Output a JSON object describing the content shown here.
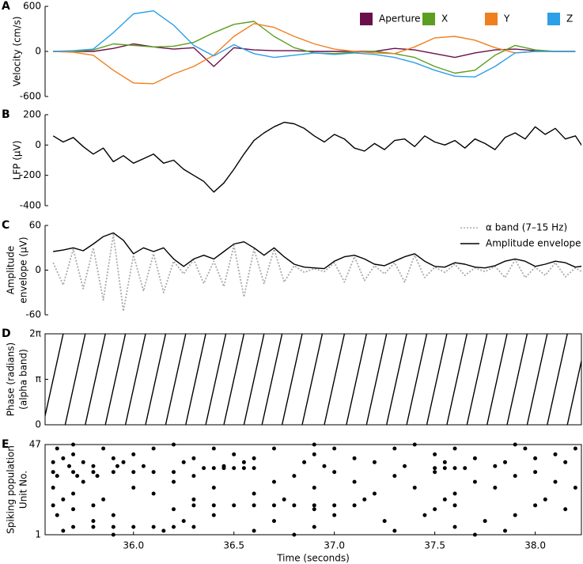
{
  "chart_data": [
    {
      "type": "line",
      "panel_label": "A",
      "ylabel": [
        "Velocity (cm/s)"
      ],
      "xlim": [
        35.56,
        38.23
      ],
      "ylim": [
        -600,
        600
      ],
      "yticks": [
        -600,
        0,
        600
      ],
      "legend": "upper right",
      "legend_marker": "square",
      "x": [
        35.6,
        35.7,
        35.8,
        35.9,
        36.0,
        36.1,
        36.2,
        36.3,
        36.4,
        36.5,
        36.6,
        36.7,
        36.8,
        36.9,
        37.0,
        37.1,
        37.2,
        37.3,
        37.4,
        37.5,
        37.6,
        37.7,
        37.8,
        37.9,
        38.0,
        38.1,
        38.2
      ],
      "series": [
        {
          "name": "Aperture",
          "color": "#6b0f4a",
          "values": [
            0,
            0,
            0,
            40,
            100,
            60,
            30,
            50,
            -200,
            50,
            20,
            10,
            10,
            0,
            0,
            0,
            0,
            40,
            20,
            -30,
            -80,
            -20,
            20,
            30,
            10,
            0,
            0
          ]
        },
        {
          "name": "X",
          "color": "#5c9e1f",
          "values": [
            0,
            0,
            20,
            100,
            80,
            60,
            70,
            120,
            250,
            360,
            400,
            200,
            50,
            -20,
            -30,
            -10,
            0,
            -30,
            -80,
            -200,
            -290,
            -250,
            -50,
            80,
            20,
            0,
            0
          ]
        },
        {
          "name": "Y",
          "color": "#f07f20",
          "values": [
            0,
            -10,
            -50,
            -250,
            -420,
            -430,
            -300,
            -200,
            -50,
            200,
            370,
            320,
            200,
            100,
            30,
            0,
            -20,
            -30,
            60,
            180,
            200,
            150,
            50,
            -20,
            0,
            0,
            0
          ]
        },
        {
          "name": "Z",
          "color": "#2b9fe8",
          "values": [
            0,
            10,
            30,
            250,
            500,
            540,
            350,
            80,
            -60,
            90,
            -30,
            -80,
            -50,
            -20,
            -40,
            -20,
            -40,
            -80,
            -150,
            -250,
            -330,
            -340,
            -200,
            -20,
            0,
            0,
            0
          ]
        }
      ]
    },
    {
      "type": "line",
      "panel_label": "B",
      "ylabel": [
        "LFP (μV)"
      ],
      "xlim": [
        35.56,
        38.23
      ],
      "ylim": [
        -400,
        200
      ],
      "yticks": [
        -400,
        -200,
        0,
        200
      ],
      "x": [
        35.6,
        35.65,
        35.7,
        35.75,
        35.8,
        35.85,
        35.9,
        35.95,
        36.0,
        36.05,
        36.1,
        36.15,
        36.2,
        36.25,
        36.3,
        36.35,
        36.4,
        36.45,
        36.5,
        36.55,
        36.6,
        36.65,
        36.7,
        36.75,
        36.8,
        36.85,
        36.9,
        36.95,
        37.0,
        37.05,
        37.1,
        37.15,
        37.2,
        37.25,
        37.3,
        37.35,
        37.4,
        37.45,
        37.5,
        37.55,
        37.6,
        37.65,
        37.7,
        37.75,
        37.8,
        37.85,
        37.9,
        37.95,
        38.0,
        38.05,
        38.1,
        38.15,
        38.2,
        38.25
      ],
      "series": [
        {
          "color": "#000000",
          "values": [
            60,
            20,
            50,
            -10,
            -60,
            -20,
            -110,
            -70,
            -120,
            -90,
            -60,
            -120,
            -100,
            -160,
            -200,
            -240,
            -310,
            -250,
            -160,
            -60,
            30,
            80,
            120,
            150,
            140,
            110,
            60,
            20,
            70,
            40,
            -20,
            -40,
            10,
            -30,
            30,
            40,
            -10,
            60,
            20,
            0,
            30,
            -20,
            40,
            10,
            -30,
            50,
            80,
            40,
            120,
            70,
            110,
            40,
            60,
            -40
          ]
        }
      ]
    },
    {
      "type": "line",
      "panel_label": "C",
      "ylabel": [
        "Amplitude",
        "envelope (μV)"
      ],
      "xlim": [
        35.56,
        38.23
      ],
      "ylim": [
        -60,
        60
      ],
      "yticks": [
        -60,
        0,
        60
      ],
      "legend": "upper right",
      "legend_marker": "line",
      "x": [
        35.6,
        35.65,
        35.7,
        35.75,
        35.8,
        35.85,
        35.9,
        35.95,
        36.0,
        36.05,
        36.1,
        36.15,
        36.2,
        36.25,
        36.3,
        36.35,
        36.4,
        36.45,
        36.5,
        36.55,
        36.6,
        36.65,
        36.7,
        36.75,
        36.8,
        36.85,
        36.9,
        36.95,
        37.0,
        37.05,
        37.1,
        37.15,
        37.2,
        37.25,
        37.3,
        37.35,
        37.4,
        37.45,
        37.5,
        37.55,
        37.6,
        37.65,
        37.7,
        37.75,
        37.8,
        37.85,
        37.9,
        37.95,
        38.0,
        38.05,
        38.1,
        38.15,
        38.2,
        38.25
      ],
      "series": [
        {
          "name": "α band (7–15 Hz)",
          "color": "#aaaaaa",
          "linestyle": "dotted",
          "values": [
            10,
            -20,
            28,
            -25,
            30,
            -40,
            48,
            -55,
            20,
            -28,
            22,
            -30,
            12,
            -5,
            14,
            -18,
            12,
            -22,
            33,
            -36,
            28,
            -18,
            28,
            -16,
            6,
            -3,
            2,
            -2,
            10,
            -16,
            18,
            -14,
            6,
            -5,
            10,
            -16,
            20,
            -10,
            4,
            -3,
            8,
            -7,
            3,
            -2,
            5,
            -10,
            14,
            -10,
            4,
            -7,
            10,
            -9,
            3,
            -5
          ]
        },
        {
          "name": "Amplitude envelope",
          "color": "#000000",
          "linestyle": "solid",
          "values": [
            25,
            27,
            30,
            26,
            35,
            45,
            50,
            40,
            22,
            30,
            25,
            30,
            15,
            5,
            15,
            20,
            15,
            25,
            35,
            38,
            30,
            20,
            30,
            18,
            8,
            4,
            3,
            2,
            12,
            18,
            20,
            15,
            8,
            6,
            12,
            18,
            22,
            12,
            5,
            4,
            10,
            8,
            4,
            3,
            6,
            12,
            15,
            12,
            5,
            8,
            12,
            10,
            4,
            6
          ]
        }
      ]
    },
    {
      "type": "line",
      "panel_label": "D",
      "ylabel": [
        "Phase (radians)",
        "(alpha band)"
      ],
      "frame": true,
      "xlim": [
        35.56,
        38.23
      ],
      "ylim": [
        0,
        6.2832
      ],
      "yticks": [
        0,
        {
          "value": 3.1416,
          "label": "π"
        },
        {
          "value": 6.2832,
          "label": "2π"
        }
      ],
      "x": [
        35.55,
        35.65,
        null,
        35.66,
        35.76,
        null,
        35.76,
        35.86,
        null,
        35.86,
        35.96,
        null,
        35.96,
        36.06,
        null,
        36.06,
        36.16,
        null,
        36.16,
        36.26,
        null,
        36.26,
        36.36,
        null,
        36.36,
        36.46,
        null,
        36.45,
        36.55,
        null,
        36.55,
        36.65,
        null,
        36.64,
        36.74,
        null,
        36.74,
        36.84,
        null,
        36.84,
        36.94,
        null,
        36.95,
        37.05,
        null,
        37.06,
        37.16,
        null,
        37.16,
        37.26,
        null,
        37.26,
        37.36,
        null,
        37.36,
        37.46,
        null,
        37.46,
        37.56,
        null,
        37.56,
        37.66,
        null,
        37.66,
        37.76,
        null,
        37.76,
        37.86,
        null,
        37.86,
        37.96,
        null,
        37.96,
        38.06,
        null,
        38.06,
        38.16,
        null,
        38.16,
        38.26
      ],
      "series": [
        {
          "color": "#000000",
          "values": [
            0,
            6.2832,
            null,
            0,
            6.2832,
            null,
            0,
            6.2832,
            null,
            0,
            6.2832,
            null,
            0,
            6.2832,
            null,
            0,
            6.2832,
            null,
            0,
            6.2832,
            null,
            0,
            6.2832,
            null,
            0,
            6.2832,
            null,
            0,
            6.2832,
            null,
            0,
            6.2832,
            null,
            0,
            6.2832,
            null,
            0,
            6.2832,
            null,
            0,
            6.2832,
            null,
            0,
            6.2832,
            null,
            0,
            6.2832,
            null,
            0,
            6.2832,
            null,
            0,
            6.2832,
            null,
            0,
            6.2832,
            null,
            0,
            6.2832,
            null,
            0,
            6.2832,
            null,
            0,
            6.2832,
            null,
            0,
            6.2832,
            null,
            0,
            6.2832,
            null,
            0,
            6.2832,
            null,
            0,
            6.2832,
            null,
            0,
            6.2832
          ]
        }
      ]
    },
    {
      "type": "scatter",
      "panel_label": "E",
      "ylabel": [
        "Spiking population",
        "Unit No."
      ],
      "frame": true,
      "xlabel": "Time (seconds)",
      "color": "#000000",
      "xlim": [
        35.56,
        38.23
      ],
      "ylim": [
        1,
        47
      ],
      "yticks": [
        1,
        47
      ],
      "xticks": [
        {
          "value": 36,
          "label": "36.0"
        },
        36.5,
        {
          "value": 37,
          "label": "37.0"
        },
        37.5,
        {
          "value": 38,
          "label": "38.0"
        }
      ],
      "x": [
        35.7,
        36.2,
        36.9,
        37.4,
        37.9,
        35.62,
        35.85,
        36.1,
        36.4,
        36.7,
        37.0,
        37.3,
        37.6,
        37.95,
        38.2,
        35.7,
        36.0,
        36.5,
        36.9,
        37.5,
        38.1,
        35.65,
        35.9,
        36.3,
        36.6,
        37.1,
        37.7,
        38.0,
        35.6,
        35.75,
        35.95,
        36.25,
        36.55,
        36.85,
        37.2,
        37.55,
        37.85,
        38.15,
        35.68,
        35.8,
        35.92,
        36.05,
        36.45,
        36.95,
        37.35,
        37.8,
        36.35,
        36.4,
        36.45,
        36.5,
        36.55,
        36.6,
        37.5,
        37.55,
        37.6,
        37.65,
        35.6,
        35.7,
        35.8,
        35.9,
        36.0,
        36.1,
        36.2,
        37.0,
        37.5,
        38.0,
        35.62,
        35.72,
        35.82,
        36.3,
        36.8,
        37.3,
        37.9,
        35.75,
        36.2,
        36.7,
        37.1,
        37.7,
        38.1,
        35.6,
        36.0,
        36.4,
        36.9,
        37.4,
        37.8,
        38.2,
        35.7,
        36.1,
        36.6,
        37.2,
        37.6,
        35.65,
        35.85,
        36.3,
        36.75,
        37.15,
        37.55,
        38.05,
        35.6,
        35.8,
        36.3,
        36.4,
        36.5,
        36.6,
        36.7,
        36.8,
        36.9,
        37.0,
        37.1,
        37.6,
        38.0,
        35.7,
        36.2,
        36.9,
        37.5,
        38.15,
        35.62,
        35.9,
        36.4,
        37.0,
        37.45,
        37.9,
        35.8,
        36.25,
        36.7,
        37.25,
        37.75,
        35.7,
        35.8,
        35.9,
        36.0,
        36.1,
        36.2,
        36.3,
        36.9,
        37.6,
        35.65,
        36.15,
        36.6,
        37.3,
        37.85,
        35.9,
        36.8,
        37.7
      ],
      "values": [
        47,
        47,
        47,
        47,
        47,
        45,
        45,
        45,
        45,
        45,
        45,
        45,
        45,
        45,
        45,
        42,
        42,
        42,
        42,
        42,
        42,
        40,
        40,
        40,
        40,
        40,
        40,
        40,
        38,
        38,
        38,
        38,
        38,
        38,
        38,
        38,
        38,
        38,
        36,
        36,
        36,
        36,
        36,
        36,
        36,
        36,
        35,
        35,
        35,
        35,
        35,
        35,
        35,
        35,
        35,
        35,
        33,
        33,
        33,
        33,
        33,
        33,
        33,
        33,
        33,
        33,
        31,
        31,
        31,
        31,
        31,
        31,
        31,
        28,
        28,
        28,
        28,
        28,
        28,
        25,
        25,
        25,
        25,
        25,
        25,
        25,
        22,
        22,
        22,
        22,
        22,
        19,
        19,
        19,
        19,
        19,
        19,
        19,
        16,
        16,
        16,
        16,
        16,
        16,
        16,
        16,
        16,
        16,
        16,
        16,
        16,
        14,
        14,
        14,
        14,
        14,
        11,
        11,
        11,
        11,
        11,
        11,
        8,
        8,
        8,
        8,
        8,
        5,
        5,
        5,
        5,
        5,
        5,
        5,
        5,
        5,
        3,
        3,
        3,
        3,
        3,
        1,
        1,
        1
      ]
    }
  ]
}
